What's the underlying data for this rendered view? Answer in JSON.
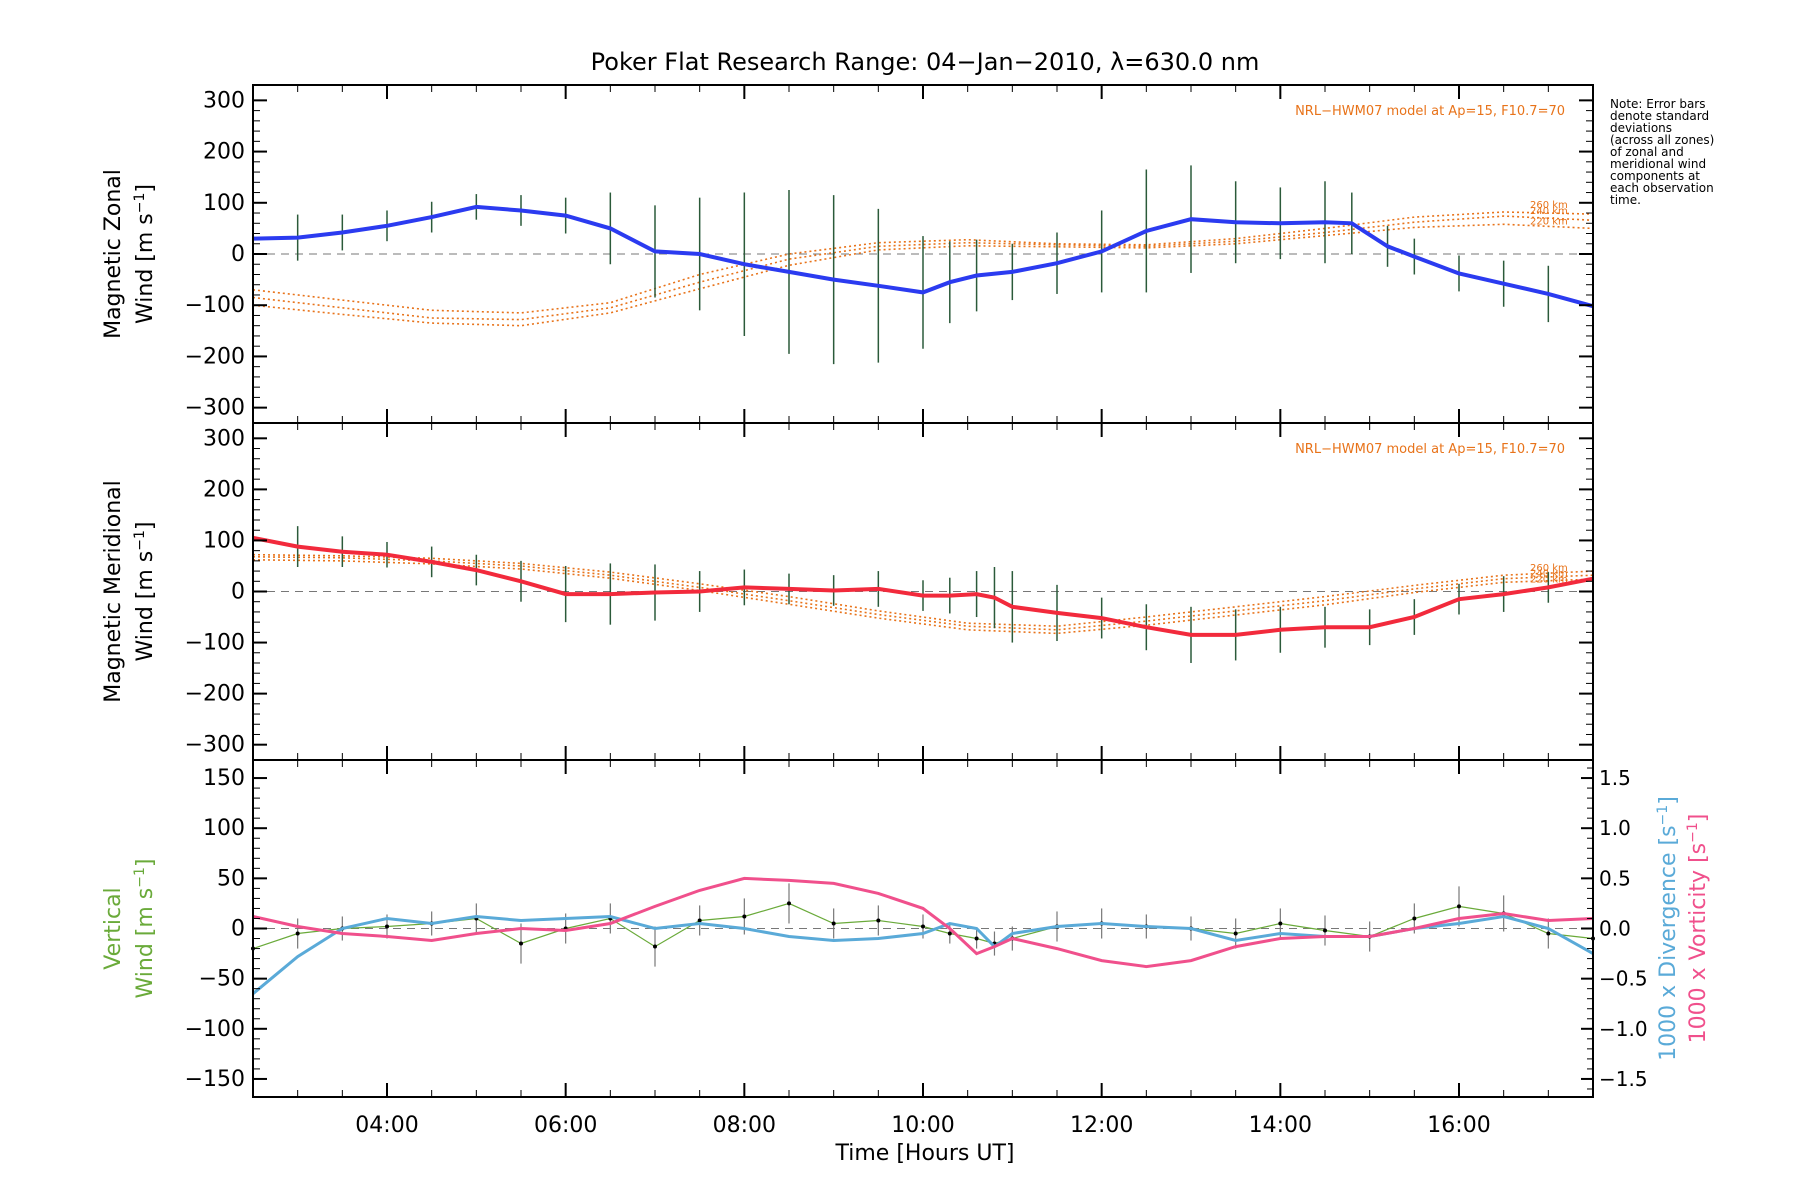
{
  "title": "Poker Flat Research Range: 04−Jan−2010, λ=630.0 nm",
  "note_lines": [
    "Note: Error bars",
    "denote standard",
    "deviations",
    "(across all zones)",
    "of zonal and",
    "meridional wind",
    "components at",
    "each observation",
    "time."
  ],
  "colors": {
    "zonal": "#2b3bf0",
    "meridional": "#f22a3c",
    "model": "#e8731a",
    "vertical": "#6aaa3a",
    "divergence": "#5aaad8",
    "vorticity": "#f0508c",
    "errorbar": "#2b5a3a"
  },
  "chart_data": [
    {
      "type": "line",
      "panel": "zonal",
      "ylabel_line1": "Magnetic Zonal",
      "ylabel_line2": "Wind [m s",
      "ylabel_sup": "−1",
      "ylabel_end": "]",
      "ylim": [
        -330,
        330
      ],
      "yticks": [
        300,
        200,
        100,
        0,
        -100,
        -200,
        -300
      ],
      "ytick_labels": [
        "300",
        "200",
        "100",
        "0",
        "−100",
        "−200",
        "−300"
      ],
      "xlim": [
        2.5,
        17.5
      ],
      "model_label": "NRL−HWM07 model at Ap=15, F10.7=70",
      "model_altitudes": [
        "260 km",
        "240 km",
        "220 km"
      ],
      "series": [
        {
          "name": "Zonal wind",
          "x": [
            2.5,
            3.0,
            3.5,
            4.0,
            4.5,
            5.0,
            5.5,
            6.0,
            6.5,
            7.0,
            7.5,
            8.0,
            8.5,
            9.0,
            9.5,
            10.0,
            10.3,
            10.6,
            11.0,
            11.5,
            12.0,
            12.5,
            13.0,
            13.5,
            14.0,
            14.5,
            14.8,
            15.2,
            15.5,
            16.0,
            16.5,
            17.0,
            17.5
          ],
          "values": [
            30,
            32,
            42,
            55,
            72,
            92,
            85,
            75,
            50,
            5,
            0,
            -20,
            -35,
            -50,
            -62,
            -75,
            -55,
            -42,
            -35,
            -18,
            5,
            45,
            68,
            62,
            60,
            62,
            60,
            15,
            -5,
            -38,
            -58,
            -78,
            -102
          ],
          "err": [
            60,
            45,
            35,
            30,
            30,
            25,
            30,
            35,
            70,
            90,
            110,
            140,
            160,
            165,
            150,
            110,
            80,
            70,
            55,
            60,
            80,
            120,
            105,
            80,
            70,
            80,
            60,
            40,
            35,
            35,
            45,
            55,
            50
          ]
        },
        {
          "name": "HWM07 260 km",
          "x": [
            2.5,
            3.5,
            4.5,
            5.5,
            6.5,
            7.5,
            8.5,
            9.5,
            10.5,
            11.5,
            12.5,
            13.5,
            14.5,
            15.5,
            16.5,
            17.5
          ],
          "values": [
            -70,
            -90,
            -110,
            -115,
            -95,
            -40,
            0,
            22,
            28,
            20,
            18,
            30,
            50,
            72,
            82,
            78
          ]
        },
        {
          "name": "HWM07 240 km",
          "x": [
            2.5,
            3.5,
            4.5,
            5.5,
            6.5,
            7.5,
            8.5,
            9.5,
            10.5,
            11.5,
            12.5,
            13.5,
            14.5,
            15.5,
            16.5,
            17.5
          ],
          "values": [
            -85,
            -105,
            -125,
            -128,
            -105,
            -55,
            -10,
            15,
            22,
            18,
            15,
            25,
            42,
            62,
            74,
            66
          ]
        },
        {
          "name": "HWM07 220 km",
          "x": [
            2.5,
            3.5,
            4.5,
            5.5,
            6.5,
            7.5,
            8.5,
            9.5,
            10.5,
            11.5,
            12.5,
            13.5,
            14.5,
            15.5,
            16.5,
            17.5
          ],
          "values": [
            -100,
            -118,
            -135,
            -140,
            -115,
            -68,
            -22,
            8,
            16,
            14,
            12,
            20,
            36,
            52,
            58,
            50
          ]
        }
      ]
    },
    {
      "type": "line",
      "panel": "meridional",
      "ylabel_line1": "Magnetic Meridional",
      "ylabel_line2": "Wind [m s",
      "ylabel_sup": "−1",
      "ylabel_end": "]",
      "ylim": [
        -330,
        330
      ],
      "yticks": [
        300,
        200,
        100,
        0,
        -100,
        -200,
        -300
      ],
      "ytick_labels": [
        "300",
        "200",
        "100",
        "0",
        "−100",
        "−200",
        "−300"
      ],
      "xlim": [
        2.5,
        17.5
      ],
      "model_label": "NRL−HWM07 model at Ap=15, F10.7=70",
      "model_altitudes": [
        "260 km",
        "240 km",
        "220 km"
      ],
      "series": [
        {
          "name": "Meridional wind",
          "x": [
            2.5,
            3.0,
            3.5,
            4.0,
            4.5,
            5.0,
            5.5,
            6.0,
            6.5,
            7.0,
            7.5,
            8.0,
            8.5,
            9.0,
            9.5,
            10.0,
            10.3,
            10.6,
            10.8,
            11.0,
            11.5,
            12.0,
            12.5,
            13.0,
            13.5,
            14.0,
            14.5,
            15.0,
            15.5,
            16.0,
            16.5,
            17.0,
            17.5
          ],
          "values": [
            105,
            88,
            78,
            72,
            58,
            42,
            20,
            -5,
            -5,
            -2,
            0,
            8,
            5,
            2,
            5,
            -8,
            -8,
            -5,
            -12,
            -30,
            -42,
            -52,
            -70,
            -85,
            -85,
            -75,
            -70,
            -70,
            -50,
            -15,
            -5,
            8,
            25
          ],
          "err": [
            70,
            40,
            30,
            25,
            30,
            30,
            40,
            55,
            60,
            55,
            40,
            35,
            30,
            30,
            35,
            30,
            35,
            45,
            60,
            70,
            55,
            40,
            45,
            55,
            50,
            45,
            40,
            35,
            35,
            30,
            35,
            30,
            30
          ]
        },
        {
          "name": "HWM07 260 km",
          "x": [
            2.5,
            3.5,
            4.5,
            5.5,
            6.5,
            7.5,
            8.5,
            9.5,
            10.5,
            11.5,
            12.5,
            13.5,
            14.5,
            15.5,
            16.5,
            17.5
          ],
          "values": [
            72,
            70,
            65,
            55,
            38,
            15,
            -10,
            -38,
            -62,
            -68,
            -50,
            -30,
            -10,
            12,
            32,
            40
          ]
        },
        {
          "name": "HWM07 240 km",
          "x": [
            2.5,
            3.5,
            4.5,
            5.5,
            6.5,
            7.5,
            8.5,
            9.5,
            10.5,
            11.5,
            12.5,
            13.5,
            14.5,
            15.5,
            16.5,
            17.5
          ],
          "values": [
            68,
            66,
            60,
            50,
            32,
            8,
            -18,
            -45,
            -68,
            -75,
            -58,
            -38,
            -18,
            5,
            25,
            32
          ]
        },
        {
          "name": "HWM07 220 km",
          "x": [
            2.5,
            3.5,
            4.5,
            5.5,
            6.5,
            7.5,
            8.5,
            9.5,
            10.5,
            11.5,
            12.5,
            13.5,
            14.5,
            15.5,
            16.5,
            17.5
          ],
          "values": [
            62,
            60,
            54,
            44,
            26,
            2,
            -25,
            -52,
            -75,
            -82,
            -66,
            -46,
            -26,
            -2,
            18,
            24
          ]
        }
      ]
    },
    {
      "type": "line",
      "panel": "vertical",
      "ylabel_line1": "Vertical",
      "ylabel_line2": "Wind [m s",
      "ylabel_sup": "−1",
      "ylabel_end": "]",
      "ylim": [
        -168,
        168
      ],
      "yticks": [
        150,
        100,
        50,
        0,
        -50,
        -100,
        -150
      ],
      "ytick_labels": [
        "150",
        "100",
        "50",
        "0",
        "−50",
        "−100",
        "−150"
      ],
      "y2lim": [
        -1.68,
        1.68
      ],
      "y2ticks": [
        1.5,
        1.0,
        0.5,
        0.0,
        -0.5,
        -1.0,
        -1.5
      ],
      "y2tick_labels": [
        "1.5",
        "1.0",
        "0.5",
        "0.0",
        "−0.5",
        "−1.0",
        "−1.5"
      ],
      "y2label_div": "1000 x Divergence [s",
      "y2label_vort": "1000 x Vorticity [s",
      "y2label_sup": "−1",
      "y2label_end": "]",
      "xlim": [
        2.5,
        17.5
      ],
      "series": [
        {
          "name": "Vertical wind",
          "x": [
            2.5,
            3.0,
            3.5,
            4.0,
            4.5,
            5.0,
            5.5,
            6.0,
            6.5,
            7.0,
            7.5,
            8.0,
            8.5,
            9.0,
            9.5,
            10.0,
            10.3,
            10.6,
            10.8,
            11.0,
            11.5,
            12.0,
            12.5,
            13.0,
            13.5,
            14.0,
            14.5,
            15.0,
            15.5,
            16.0,
            16.5,
            17.0,
            17.5
          ],
          "values": [
            -20,
            -5,
            0,
            2,
            5,
            10,
            -15,
            0,
            10,
            -18,
            8,
            12,
            25,
            5,
            8,
            2,
            -5,
            -10,
            -15,
            -10,
            2,
            5,
            2,
            0,
            -5,
            5,
            -2,
            -8,
            10,
            22,
            15,
            -5,
            -10
          ],
          "err": [
            20,
            15,
            12,
            12,
            12,
            15,
            20,
            15,
            15,
            20,
            15,
            18,
            20,
            15,
            15,
            12,
            10,
            10,
            12,
            12,
            15,
            15,
            12,
            12,
            15,
            15,
            15,
            15,
            15,
            20,
            18,
            15,
            20
          ]
        },
        {
          "name": "Divergence",
          "x": [
            2.5,
            3.0,
            3.5,
            4.0,
            4.5,
            5.0,
            5.5,
            6.0,
            6.5,
            7.0,
            7.5,
            8.0,
            8.5,
            9.0,
            9.5,
            10.0,
            10.3,
            10.6,
            10.8,
            11.0,
            11.5,
            12.0,
            12.5,
            13.0,
            13.5,
            14.0,
            14.5,
            15.0,
            15.5,
            16.0,
            16.5,
            17.0,
            17.5
          ],
          "values": [
            -0.65,
            -0.28,
            0.0,
            0.1,
            0.05,
            0.12,
            0.08,
            0.1,
            0.12,
            0.0,
            0.05,
            0.0,
            -0.08,
            -0.12,
            -0.1,
            -0.05,
            0.05,
            0.0,
            -0.18,
            -0.05,
            0.02,
            0.05,
            0.02,
            0.0,
            -0.12,
            -0.05,
            -0.08,
            -0.08,
            0.0,
            0.05,
            0.12,
            0.0,
            -0.25
          ]
        },
        {
          "name": "Vorticity",
          "x": [
            2.5,
            3.0,
            3.5,
            4.0,
            4.5,
            5.0,
            5.5,
            6.0,
            6.5,
            7.0,
            7.5,
            8.0,
            8.5,
            9.0,
            9.5,
            10.0,
            10.3,
            10.6,
            10.8,
            11.0,
            11.5,
            12.0,
            12.5,
            13.0,
            13.5,
            14.0,
            14.5,
            15.0,
            15.5,
            16.0,
            16.5,
            17.0,
            17.5
          ],
          "values": [
            0.12,
            0.02,
            -0.05,
            -0.08,
            -0.12,
            -0.05,
            0.0,
            -0.02,
            0.05,
            0.22,
            0.38,
            0.5,
            0.48,
            0.45,
            0.35,
            0.2,
            0.0,
            -0.25,
            -0.18,
            -0.1,
            -0.2,
            -0.32,
            -0.38,
            -0.32,
            -0.18,
            -0.1,
            -0.08,
            -0.08,
            0.0,
            0.1,
            0.15,
            0.08,
            0.1
          ]
        }
      ]
    }
  ],
  "xticks": [
    4,
    6,
    8,
    10,
    12,
    14,
    16
  ],
  "xtick_labels": [
    "04:00",
    "06:00",
    "08:00",
    "10:00",
    "12:00",
    "14:00",
    "16:00"
  ],
  "xlabel": "Time [Hours UT]"
}
